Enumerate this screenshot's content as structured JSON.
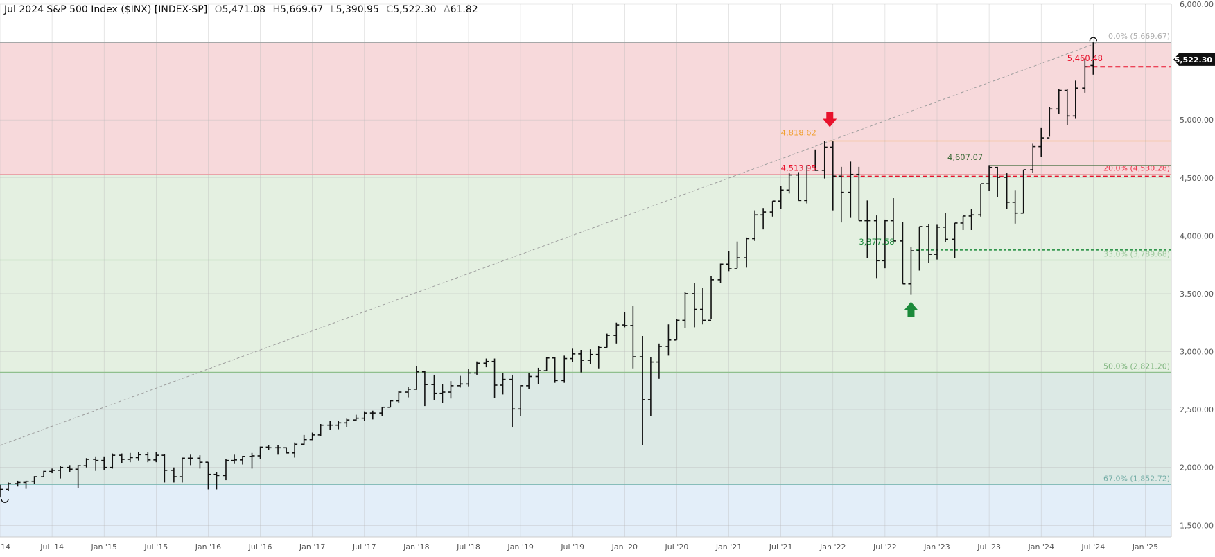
{
  "header": {
    "title": "Jul 2024 S&P 500 Index ($INX) [INDEX-SP]",
    "open_key": "O",
    "open": "5,471.08",
    "high_key": "H",
    "high": "5,669.67",
    "low_key": "L",
    "low": "5,390.95",
    "close_key": "C",
    "close": "5,522.30",
    "change_key": "Δ",
    "change": "61.82"
  },
  "colors": {
    "zone_top": "#f7d9db",
    "zone_mid": "#e4f0e1",
    "zone_low": "#dce9e5",
    "zone_bottom": "#e3eef9",
    "bar": "#111111",
    "down_arrow": "#e8122c",
    "up_arrow": "#1b8a3a"
  },
  "chart_data": {
    "type": "ohlc",
    "x_ticks": [
      "14",
      "Jul '14",
      "Jan '15",
      "Jul '15",
      "Jan '16",
      "Jul '16",
      "Jan '17",
      "Jul '17",
      "Jan '18",
      "Jul '18",
      "Jan '19",
      "Jul '19",
      "Jan '20",
      "Jul '20",
      "Jan '21",
      "Jul '21",
      "Jan '22",
      "Jul '22",
      "Jan '23",
      "Jul '23",
      "Jan '24",
      "Jul '24",
      "Jan '25"
    ],
    "x_tick_dates": [
      2014.0,
      2014.5,
      2015.0,
      2015.5,
      2016.0,
      2016.5,
      2017.0,
      2017.5,
      2018.0,
      2018.5,
      2019.0,
      2019.5,
      2020.0,
      2020.5,
      2021.0,
      2021.5,
      2022.0,
      2022.5,
      2023.0,
      2023.5,
      2024.0,
      2024.5,
      2025.0
    ],
    "y_ticks": [
      "1,500.00",
      "2,000.00",
      "2,500.00",
      "3,000.00",
      "3,500.00",
      "4,000.00",
      "4,500.00",
      "5,000.00",
      "5,500.00",
      "6,000.00"
    ],
    "y_tick_values": [
      1500,
      2000,
      2500,
      3000,
      3500,
      4000,
      4500,
      5000,
      5500,
      6000
    ],
    "ylim": [
      1400,
      6000
    ],
    "xlim": [
      2014.0,
      2025.25
    ],
    "last_price_label": "5,522.30",
    "last_price": 5522.3,
    "retracement_levels": [
      {
        "label": "0.0% (5,669.67)",
        "value": 5669.67
      },
      {
        "label": "20.0% (4,530.28)",
        "value": 4530.28
      },
      {
        "label": "33.0% (3,789.68)",
        "value": 3789.68
      },
      {
        "label": "50.0% (2,821.20)",
        "value": 2821.2
      },
      {
        "label": "67.0% (1,852.72)",
        "value": 1852.72
      }
    ],
    "annotations": [
      {
        "label": "5,460.48",
        "value": 5460.48,
        "x": 2024.25,
        "color": "#e8122c"
      },
      {
        "label": "4,818.62",
        "value": 4818.62,
        "x": 2021.5,
        "color": "#f0a030"
      },
      {
        "label": "4,607.07",
        "value": 4607.07,
        "x": 2023.1,
        "color": "#3e6b3a"
      },
      {
        "label": "4,513.95",
        "value": 4513.95,
        "x": 2021.5,
        "color": "#e8122c"
      },
      {
        "label": "3,877.58",
        "value": 3877.58,
        "x": 2022.25,
        "color": "#1b8a3a"
      }
    ],
    "bars": [
      [
        2014.0,
        1845,
        1850,
        1740,
        1810
      ],
      [
        2014.08,
        1810,
        1870,
        1795,
        1860
      ],
      [
        2014.17,
        1860,
        1885,
        1835,
        1870
      ],
      [
        2014.25,
        1870,
        1885,
        1815,
        1880
      ],
      [
        2014.33,
        1880,
        1925,
        1860,
        1920
      ],
      [
        2014.42,
        1920,
        1970,
        1915,
        1965
      ],
      [
        2014.5,
        1965,
        1990,
        1950,
        1975
      ],
      [
        2014.58,
        1975,
        2010,
        1905,
        2000
      ],
      [
        2014.67,
        2000,
        2020,
        1960,
        1985
      ],
      [
        2014.75,
        1985,
        2020,
        1820,
        2015
      ],
      [
        2014.83,
        2015,
        2080,
        2000,
        2070
      ],
      [
        2014.92,
        2070,
        2095,
        1970,
        2060
      ],
      [
        2015.0,
        2060,
        2095,
        1980,
        2000
      ],
      [
        2015.08,
        2000,
        2120,
        1990,
        2105
      ],
      [
        2015.17,
        2105,
        2120,
        2040,
        2070
      ],
      [
        2015.25,
        2070,
        2125,
        2045,
        2085
      ],
      [
        2015.33,
        2085,
        2135,
        2060,
        2110
      ],
      [
        2015.42,
        2110,
        2130,
        2045,
        2065
      ],
      [
        2015.5,
        2065,
        2130,
        2045,
        2105
      ],
      [
        2015.58,
        2105,
        2115,
        1870,
        1975
      ],
      [
        2015.67,
        1975,
        2000,
        1870,
        1920
      ],
      [
        2015.75,
        1920,
        2085,
        1870,
        2080
      ],
      [
        2015.83,
        2080,
        2110,
        2020,
        2080
      ],
      [
        2015.92,
        2080,
        2105,
        1990,
        2045
      ],
      [
        2016.0,
        2045,
        2045,
        1810,
        1940
      ],
      [
        2016.08,
        1940,
        1960,
        1810,
        1930
      ],
      [
        2016.17,
        1930,
        2075,
        1890,
        2060
      ],
      [
        2016.25,
        2060,
        2110,
        2030,
        2065
      ],
      [
        2016.33,
        2065,
        2100,
        2025,
        2095
      ],
      [
        2016.42,
        2095,
        2125,
        1990,
        2100
      ],
      [
        2016.5,
        2100,
        2180,
        2075,
        2175
      ],
      [
        2016.58,
        2175,
        2195,
        2150,
        2170
      ],
      [
        2016.67,
        2170,
        2190,
        2110,
        2170
      ],
      [
        2016.75,
        2170,
        2175,
        2125,
        2125
      ],
      [
        2016.83,
        2125,
        2215,
        2085,
        2200
      ],
      [
        2016.92,
        2200,
        2280,
        2195,
        2240
      ],
      [
        2017.0,
        2240,
        2300,
        2235,
        2280
      ],
      [
        2017.08,
        2280,
        2375,
        2270,
        2365
      ],
      [
        2017.17,
        2365,
        2400,
        2325,
        2365
      ],
      [
        2017.25,
        2365,
        2400,
        2330,
        2385
      ],
      [
        2017.33,
        2385,
        2420,
        2350,
        2410
      ],
      [
        2017.42,
        2410,
        2455,
        2400,
        2425
      ],
      [
        2017.5,
        2425,
        2485,
        2405,
        2470
      ],
      [
        2017.58,
        2470,
        2490,
        2415,
        2470
      ],
      [
        2017.67,
        2470,
        2520,
        2445,
        2520
      ],
      [
        2017.75,
        2520,
        2580,
        2520,
        2575
      ],
      [
        2017.83,
        2575,
        2660,
        2555,
        2650
      ],
      [
        2017.92,
        2650,
        2695,
        2605,
        2675
      ],
      [
        2018.0,
        2675,
        2875,
        2670,
        2825
      ],
      [
        2018.08,
        2825,
        2835,
        2530,
        2715
      ],
      [
        2018.17,
        2715,
        2800,
        2580,
        2640
      ],
      [
        2018.25,
        2640,
        2720,
        2555,
        2650
      ],
      [
        2018.33,
        2650,
        2745,
        2595,
        2705
      ],
      [
        2018.42,
        2705,
        2790,
        2690,
        2720
      ],
      [
        2018.5,
        2720,
        2850,
        2700,
        2815
      ],
      [
        2018.58,
        2815,
        2915,
        2800,
        2900
      ],
      [
        2018.67,
        2900,
        2940,
        2865,
        2915
      ],
      [
        2018.75,
        2915,
        2940,
        2600,
        2710
      ],
      [
        2018.83,
        2710,
        2815,
        2630,
        2760
      ],
      [
        2018.92,
        2760,
        2800,
        2345,
        2505
      ],
      [
        2019.0,
        2505,
        2710,
        2445,
        2705
      ],
      [
        2019.08,
        2705,
        2815,
        2680,
        2785
      ],
      [
        2019.17,
        2785,
        2860,
        2720,
        2835
      ],
      [
        2019.25,
        2835,
        2950,
        2835,
        2945
      ],
      [
        2019.33,
        2945,
        2955,
        2730,
        2750
      ],
      [
        2019.42,
        2750,
        2965,
        2730,
        2940
      ],
      [
        2019.5,
        2940,
        3025,
        2910,
        2980
      ],
      [
        2019.58,
        2980,
        3015,
        2820,
        2925
      ],
      [
        2019.67,
        2925,
        3020,
        2890,
        2975
      ],
      [
        2019.75,
        2975,
        3045,
        2855,
        3035
      ],
      [
        2019.83,
        3035,
        3155,
        3035,
        3140
      ],
      [
        2019.92,
        3140,
        3250,
        3070,
        3230
      ],
      [
        2020.0,
        3230,
        3340,
        3210,
        3225
      ],
      [
        2020.08,
        3225,
        3395,
        2855,
        2955
      ],
      [
        2020.17,
        2955,
        3135,
        2190,
        2585
      ],
      [
        2020.25,
        2585,
        2955,
        2445,
        2910
      ],
      [
        2020.33,
        2910,
        3070,
        2765,
        3045
      ],
      [
        2020.42,
        3045,
        3235,
        2965,
        3100
      ],
      [
        2020.5,
        3100,
        3280,
        3100,
        3270
      ],
      [
        2020.58,
        3270,
        3515,
        3205,
        3500
      ],
      [
        2020.67,
        3500,
        3590,
        3210,
        3365
      ],
      [
        2020.75,
        3365,
        3550,
        3235,
        3270
      ],
      [
        2020.83,
        3270,
        3650,
        3280,
        3620
      ],
      [
        2020.92,
        3620,
        3760,
        3595,
        3755
      ],
      [
        2021.0,
        3755,
        3870,
        3695,
        3715
      ],
      [
        2021.08,
        3715,
        3950,
        3720,
        3810
      ],
      [
        2021.17,
        3810,
        3985,
        3725,
        3975
      ],
      [
        2021.25,
        3975,
        4220,
        3955,
        4180
      ],
      [
        2021.33,
        4180,
        4240,
        4055,
        4205
      ],
      [
        2021.42,
        4205,
        4300,
        4165,
        4300
      ],
      [
        2021.5,
        4300,
        4430,
        4235,
        4395
      ],
      [
        2021.58,
        4395,
        4540,
        4365,
        4525
      ],
      [
        2021.67,
        4525,
        4550,
        4305,
        4305
      ],
      [
        2021.75,
        4305,
        4610,
        4280,
        4605
      ],
      [
        2021.83,
        4605,
        4745,
        4560,
        4565
      ],
      [
        2021.92,
        4565,
        4820,
        4495,
        4765
      ],
      [
        2022.0,
        4765,
        4815,
        4220,
        4515
      ],
      [
        2022.08,
        4515,
        4595,
        4115,
        4375
      ],
      [
        2022.17,
        4375,
        4640,
        4160,
        4530
      ],
      [
        2022.25,
        4530,
        4595,
        4130,
        4130
      ],
      [
        2022.33,
        4130,
        4305,
        3810,
        4130
      ],
      [
        2022.42,
        4130,
        4175,
        3635,
        3785
      ],
      [
        2022.5,
        3785,
        4140,
        3720,
        4130
      ],
      [
        2022.58,
        4130,
        4325,
        3955,
        3955
      ],
      [
        2022.67,
        3955,
        4120,
        3585,
        3585
      ],
      [
        2022.75,
        3585,
        3905,
        3490,
        3870
      ],
      [
        2022.83,
        3870,
        4080,
        3700,
        4080
      ],
      [
        2022.92,
        4080,
        4100,
        3765,
        3840
      ],
      [
        2023.0,
        3840,
        4095,
        3795,
        4075
      ],
      [
        2023.08,
        4075,
        4195,
        3945,
        3970
      ],
      [
        2023.17,
        3970,
        4110,
        3810,
        4110
      ],
      [
        2023.25,
        4110,
        4170,
        4050,
        4170
      ],
      [
        2023.33,
        4170,
        4235,
        4050,
        4180
      ],
      [
        2023.42,
        4180,
        4450,
        4165,
        4450
      ],
      [
        2023.5,
        4450,
        4610,
        4385,
        4590
      ],
      [
        2023.58,
        4590,
        4595,
        4335,
        4505
      ],
      [
        2023.67,
        4505,
        4540,
        4235,
        4290
      ],
      [
        2023.75,
        4290,
        4395,
        4105,
        4195
      ],
      [
        2023.83,
        4195,
        4570,
        4195,
        4570
      ],
      [
        2023.92,
        4570,
        4795,
        4545,
        4770
      ],
      [
        2024.0,
        4770,
        4930,
        4680,
        4845
      ],
      [
        2024.08,
        4845,
        5110,
        4855,
        5095
      ],
      [
        2024.17,
        5095,
        5265,
        5055,
        5255
      ],
      [
        2024.25,
        5255,
        5265,
        4955,
        5035
      ],
      [
        2024.33,
        5035,
        5340,
        5010,
        5275
      ],
      [
        2024.42,
        5275,
        5525,
        5235,
        5460
      ],
      [
        2024.5,
        5471,
        5670,
        5391,
        5522
      ]
    ]
  }
}
